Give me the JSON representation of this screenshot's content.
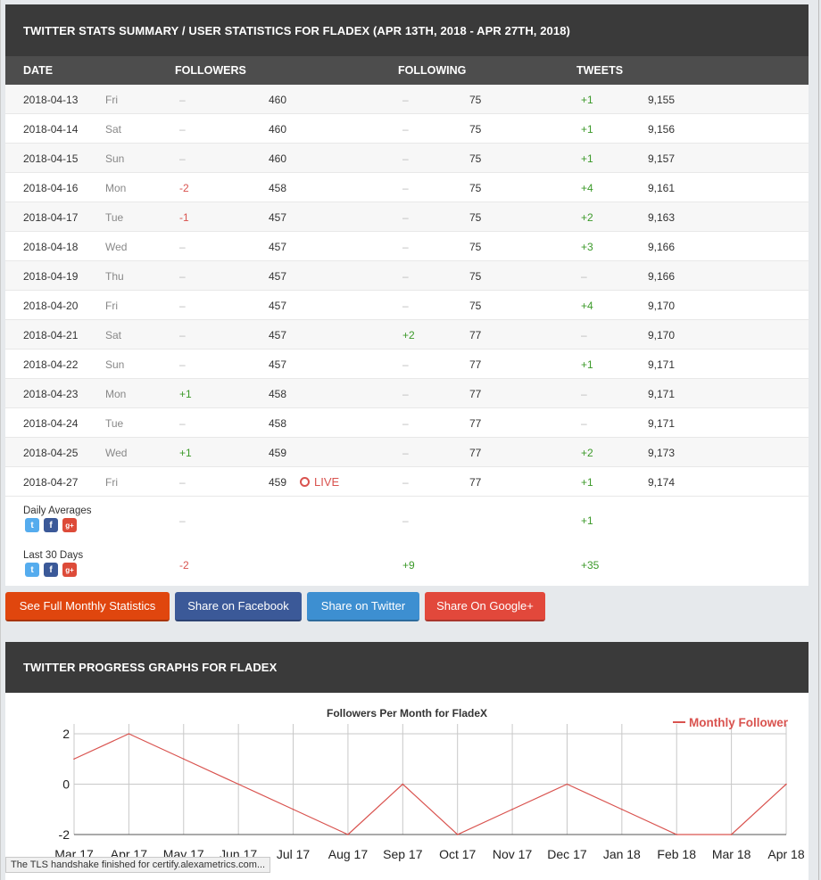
{
  "stats_title": "TWITTER STATS SUMMARY / USER STATISTICS FOR FLADEX (APR 13TH, 2018 - APR 27TH, 2018)",
  "columns": [
    "DATE",
    "FOLLOWERS",
    "FOLLOWING",
    "TWEETS"
  ],
  "rows": [
    {
      "date": "2018-04-13",
      "day": "Fri",
      "fchg": "–",
      "fval": "460",
      "gchg": "–",
      "gval": "75",
      "tchg": "+1",
      "tval": "9,155"
    },
    {
      "date": "2018-04-14",
      "day": "Sat",
      "fchg": "–",
      "fval": "460",
      "gchg": "–",
      "gval": "75",
      "tchg": "+1",
      "tval": "9,156"
    },
    {
      "date": "2018-04-15",
      "day": "Sun",
      "fchg": "–",
      "fval": "460",
      "gchg": "–",
      "gval": "75",
      "tchg": "+1",
      "tval": "9,157"
    },
    {
      "date": "2018-04-16",
      "day": "Mon",
      "fchg": "-2",
      "fval": "458",
      "gchg": "–",
      "gval": "75",
      "tchg": "+4",
      "tval": "9,161"
    },
    {
      "date": "2018-04-17",
      "day": "Tue",
      "fchg": "-1",
      "fval": "457",
      "gchg": "–",
      "gval": "75",
      "tchg": "+2",
      "tval": "9,163"
    },
    {
      "date": "2018-04-18",
      "day": "Wed",
      "fchg": "–",
      "fval": "457",
      "gchg": "–",
      "gval": "75",
      "tchg": "+3",
      "tval": "9,166"
    },
    {
      "date": "2018-04-19",
      "day": "Thu",
      "fchg": "–",
      "fval": "457",
      "gchg": "–",
      "gval": "75",
      "tchg": "–",
      "tval": "9,166"
    },
    {
      "date": "2018-04-20",
      "day": "Fri",
      "fchg": "–",
      "fval": "457",
      "gchg": "–",
      "gval": "75",
      "tchg": "+4",
      "tval": "9,170"
    },
    {
      "date": "2018-04-21",
      "day": "Sat",
      "fchg": "–",
      "fval": "457",
      "gchg": "+2",
      "gval": "77",
      "tchg": "–",
      "tval": "9,170"
    },
    {
      "date": "2018-04-22",
      "day": "Sun",
      "fchg": "–",
      "fval": "457",
      "gchg": "–",
      "gval": "77",
      "tchg": "+1",
      "tval": "9,171"
    },
    {
      "date": "2018-04-23",
      "day": "Mon",
      "fchg": "+1",
      "fval": "458",
      "gchg": "–",
      "gval": "77",
      "tchg": "–",
      "tval": "9,171"
    },
    {
      "date": "2018-04-24",
      "day": "Tue",
      "fchg": "–",
      "fval": "458",
      "gchg": "–",
      "gval": "77",
      "tchg": "–",
      "tval": "9,171"
    },
    {
      "date": "2018-04-25",
      "day": "Wed",
      "fchg": "+1",
      "fval": "459",
      "gchg": "–",
      "gval": "77",
      "tchg": "+2",
      "tval": "9,173"
    },
    {
      "date": "2018-04-27",
      "day": "Fri",
      "fchg": "–",
      "fval": "459",
      "gchg": "–",
      "gval": "77",
      "tchg": "+1",
      "tval": "9,174",
      "live": "LIVE"
    }
  ],
  "summary": {
    "daily": {
      "label": "Daily Averages",
      "followers": "–",
      "following": "–",
      "tweets": "+1"
    },
    "last30": {
      "label": "Last 30 Days",
      "followers": "-2",
      "following": "+9",
      "tweets": "+35"
    }
  },
  "buttons": {
    "monthly": "See Full Monthly Statistics",
    "facebook": "Share on Facebook",
    "twitter": "Share on Twitter",
    "google": "Share On Google+"
  },
  "graphs_title": "TWITTER PROGRESS GRAPHS FOR FLADEX",
  "status_text": "The TLS handshake finished for certify.alexametrics.com...",
  "colors": {
    "line": "#d9534f",
    "header": "#3a3a3a"
  },
  "chart_data": {
    "type": "line",
    "title": "Followers Per Month for FladeX",
    "x": [
      "Mar 17",
      "Apr 17",
      "May 17",
      "Jun 17",
      "Jul 17",
      "Aug 17",
      "Sep 17",
      "Oct 17",
      "Nov 17",
      "Dec 17",
      "Jan 18",
      "Feb 18",
      "Mar 18",
      "Apr 18"
    ],
    "series": [
      {
        "name": "Monthly Follower",
        "values": [
          1,
          2,
          1,
          0,
          -1,
          -2,
          0,
          -2,
          -1,
          0,
          -1,
          -2,
          -2,
          0
        ]
      }
    ],
    "y_ticks": [
      2,
      0,
      -2
    ],
    "ylim": [
      -2,
      2
    ],
    "grid": true,
    "legend": "top-right"
  }
}
